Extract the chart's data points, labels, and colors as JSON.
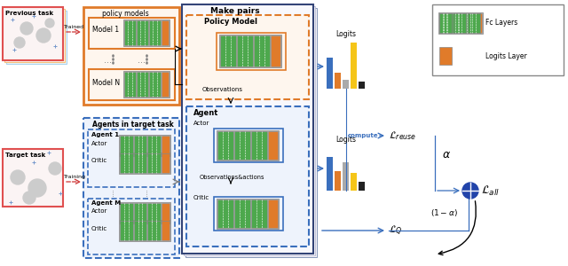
{
  "bg_color": "#ffffff",
  "green_color": "#4da84d",
  "orange_color": "#e07b2a",
  "blue_color": "#3a6fbd",
  "red_color": "#e05050",
  "gray_color": "#aaaaaa",
  "dark_color": "#222222",
  "yellow_color": "#f5c518",
  "previous_task_label": "Previous task",
  "target_task_label": "Target task",
  "policy_models_label": "policy models",
  "make_pairs_label": "Make pairs",
  "agents_label": "Agents in target task",
  "policy_model_box_label": "Policy Model",
  "agent_box_label": "Agent",
  "actor_label": "Actor",
  "critic_label": "Critic",
  "trained_label": "Trained",
  "training_label": "Training",
  "observations_label": "Observations",
  "obs_actions_label": "Observations&actions",
  "logits_top_label": "Logits",
  "logits_bot_label": "Logits",
  "compute_label": "compute",
  "fc_label": "Fc Layers",
  "logits_layer_label": "Logits Layer",
  "model1_label": "Model 1",
  "modelN_label": "Model N",
  "agent1_label": "Agent 1",
  "agentM_label": "Agent M"
}
